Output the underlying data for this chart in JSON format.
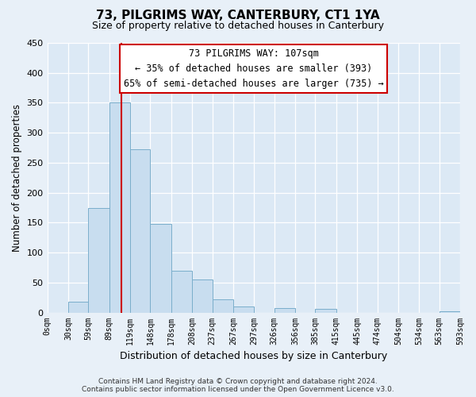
{
  "title": "73, PILGRIMS WAY, CANTERBURY, CT1 1YA",
  "subtitle": "Size of property relative to detached houses in Canterbury",
  "xlabel": "Distribution of detached houses by size in Canterbury",
  "ylabel": "Number of detached properties",
  "bar_edges": [
    0,
    30,
    59,
    89,
    119,
    148,
    178,
    208,
    237,
    267,
    297,
    326,
    356,
    385,
    415,
    445,
    474,
    504,
    534,
    563,
    593
  ],
  "bar_heights": [
    0,
    18,
    175,
    350,
    273,
    148,
    70,
    55,
    22,
    10,
    0,
    7,
    0,
    6,
    0,
    0,
    0,
    0,
    0,
    2
  ],
  "bar_color": "#c8ddef",
  "bar_edge_color": "#7aaecb",
  "property_line_x": 107,
  "property_line_color": "#cc0000",
  "annotation_title": "73 PILGRIMS WAY: 107sqm",
  "annotation_line1": "← 35% of detached houses are smaller (393)",
  "annotation_line2": "65% of semi-detached houses are larger (735) →",
  "annotation_box_color": "#ffffff",
  "annotation_box_edge": "#cc0000",
  "ylim": [
    0,
    450
  ],
  "xlim": [
    0,
    593
  ],
  "tick_labels": [
    "0sqm",
    "30sqm",
    "59sqm",
    "89sqm",
    "119sqm",
    "148sqm",
    "178sqm",
    "208sqm",
    "237sqm",
    "267sqm",
    "297sqm",
    "326sqm",
    "356sqm",
    "385sqm",
    "415sqm",
    "445sqm",
    "474sqm",
    "504sqm",
    "534sqm",
    "563sqm",
    "593sqm"
  ],
  "yticks": [
    0,
    50,
    100,
    150,
    200,
    250,
    300,
    350,
    400,
    450
  ],
  "footer_line1": "Contains HM Land Registry data © Crown copyright and database right 2024.",
  "footer_line2": "Contains public sector information licensed under the Open Government Licence v3.0.",
  "background_color": "#e8f0f8",
  "plot_background": "#dce9f5",
  "grid_color": "#ffffff"
}
